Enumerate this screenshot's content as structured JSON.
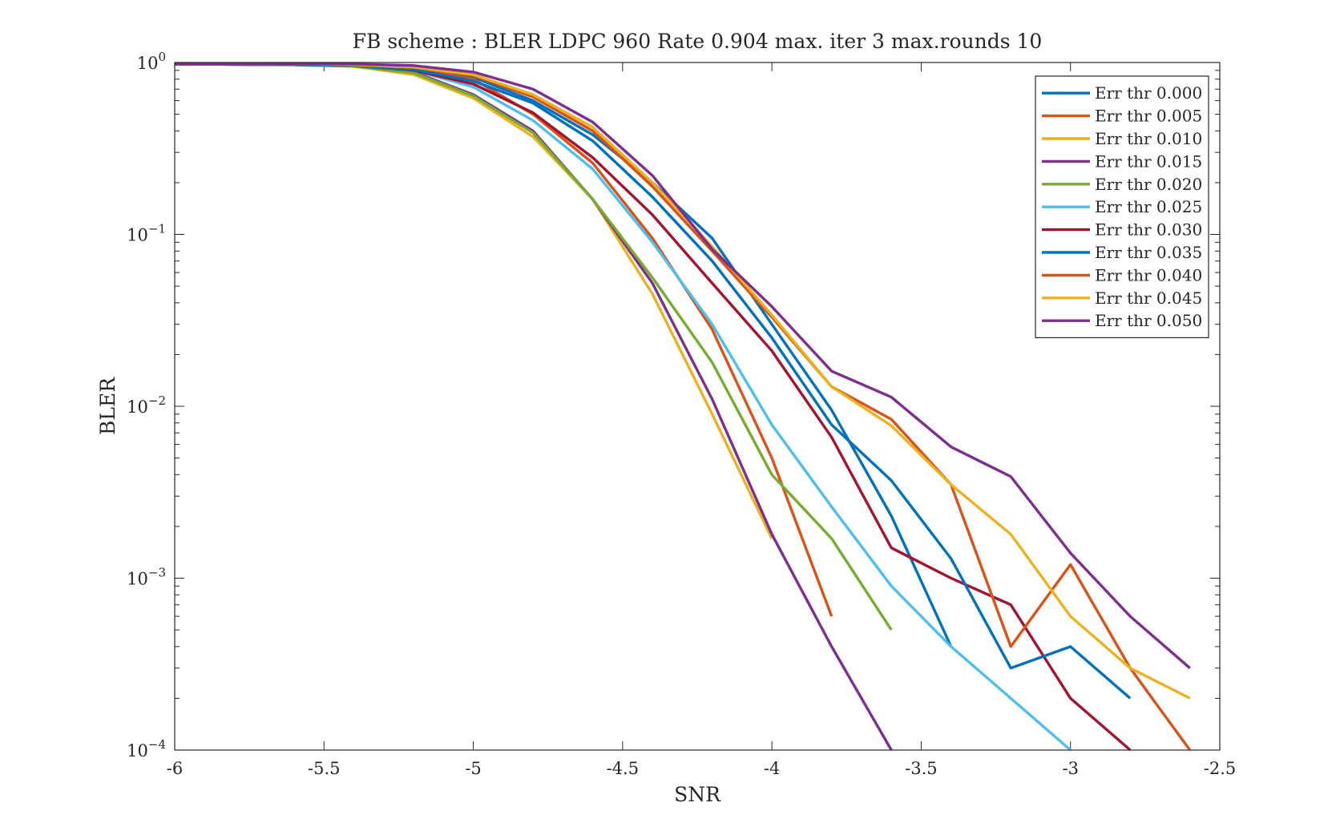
{
  "chart_data": {
    "type": "line",
    "title": "FB scheme : BLER LDPC 960 Rate 0.904 max. iter 3 max.rounds 10",
    "xlabel": "SNR",
    "ylabel": "BLER",
    "xlim": [
      -6,
      -2.5
    ],
    "ylim": [
      0.0001,
      1
    ],
    "yscale": "log",
    "grid": false,
    "legend_position": "top-right",
    "x_ticks": [
      {
        "value": -6,
        "label": "-6"
      },
      {
        "value": -5.5,
        "label": "-5.5"
      },
      {
        "value": -5,
        "label": "-5"
      },
      {
        "value": -4.5,
        "label": "-4.5"
      },
      {
        "value": -4,
        "label": "-4"
      },
      {
        "value": -3.5,
        "label": "-3.5"
      },
      {
        "value": -3,
        "label": "-3"
      },
      {
        "value": -2.5,
        "label": "-2.5"
      }
    ],
    "y_ticks": [
      {
        "value": 1,
        "base": "10",
        "exp": "0"
      },
      {
        "value": 0.1,
        "base": "10",
        "exp": "−1"
      },
      {
        "value": 0.01,
        "base": "10",
        "exp": "−2"
      },
      {
        "value": 0.001,
        "base": "10",
        "exp": "−3"
      },
      {
        "value": 0.0001,
        "base": "10",
        "exp": "−4"
      }
    ],
    "series": [
      {
        "name": "Err thr 0.000",
        "color": "#0072BD",
        "x": [
          -6,
          -5.6,
          -5.4,
          -5.2,
          -5,
          -4.8,
          -4.6,
          -4.4,
          -4.2,
          -4,
          -3.8,
          -3.6,
          -3.4
        ],
        "y": [
          0.98,
          0.98,
          0.97,
          0.94,
          0.82,
          0.6,
          0.38,
          0.2,
          0.095,
          0.03,
          0.0095,
          0.0023,
          0.0004
        ]
      },
      {
        "name": "Err thr 0.005",
        "color": "#D95319",
        "x": [
          -6,
          -5.6,
          -5.4,
          -5.2,
          -5,
          -4.8,
          -4.6,
          -4.4,
          -4.2,
          -4,
          -3.8
        ],
        "y": [
          0.98,
          0.97,
          0.96,
          0.92,
          0.8,
          0.5,
          0.26,
          0.095,
          0.028,
          0.005,
          0.0006
        ]
      },
      {
        "name": "Err thr 0.010",
        "color": "#EDB120",
        "x": [
          -6,
          -5.6,
          -5.4,
          -5.2,
          -5,
          -4.8,
          -4.6,
          -4.4,
          -4.2,
          -4
        ],
        "y": [
          0.98,
          0.97,
          0.95,
          0.85,
          0.62,
          0.37,
          0.16,
          0.045,
          0.009,
          0.0017
        ]
      },
      {
        "name": "Err thr 0.015",
        "color": "#7E2F8E",
        "x": [
          -6,
          -5.6,
          -5.4,
          -5.2,
          -5,
          -4.8,
          -4.6,
          -4.4,
          -4.2,
          -4,
          -3.8,
          -3.6
        ],
        "y": [
          0.98,
          0.97,
          0.96,
          0.88,
          0.65,
          0.4,
          0.16,
          0.052,
          0.011,
          0.0018,
          0.0004,
          0.0001
        ]
      },
      {
        "name": "Err thr 0.020",
        "color": "#77AC30",
        "x": [
          -6,
          -5.6,
          -5.4,
          -5.2,
          -5,
          -4.8,
          -4.6,
          -4.4,
          -4.2,
          -4,
          -3.8,
          -3.6
        ],
        "y": [
          0.98,
          0.97,
          0.95,
          0.87,
          0.64,
          0.39,
          0.16,
          0.056,
          0.018,
          0.004,
          0.0017,
          0.0005
        ]
      },
      {
        "name": "Err thr 0.025",
        "color": "#4DBEEE",
        "x": [
          -6,
          -5.6,
          -5.4,
          -5.2,
          -5,
          -4.8,
          -4.6,
          -4.4,
          -4.2,
          -4,
          -3.8,
          -3.6,
          -3.4,
          -3.2,
          -3
        ],
        "y": [
          0.98,
          0.97,
          0.96,
          0.9,
          0.72,
          0.46,
          0.24,
          0.09,
          0.03,
          0.0078,
          0.0026,
          0.0009,
          0.0004,
          0.0002,
          0.0001
        ]
      },
      {
        "name": "Err thr 0.030",
        "color": "#A2142F",
        "x": [
          -6,
          -5.6,
          -5.4,
          -5.2,
          -5,
          -4.8,
          -4.6,
          -4.4,
          -4.2,
          -4,
          -3.8,
          -3.6,
          -3.4,
          -3.2,
          -3,
          -2.8
        ],
        "y": [
          0.98,
          0.97,
          0.96,
          0.9,
          0.75,
          0.51,
          0.28,
          0.13,
          0.052,
          0.021,
          0.0066,
          0.0015,
          0.001,
          0.0007,
          0.0002,
          0.0001
        ]
      },
      {
        "name": "Err thr 0.035",
        "color": "#0072BD",
        "x": [
          -6,
          -5.6,
          -5.4,
          -5.2,
          -5,
          -4.8,
          -4.6,
          -4.4,
          -4.2,
          -4,
          -3.8,
          -3.6,
          -3.4,
          -3.2,
          -3,
          -2.8
        ],
        "y": [
          0.98,
          0.97,
          0.96,
          0.91,
          0.78,
          0.58,
          0.35,
          0.165,
          0.07,
          0.025,
          0.0078,
          0.0037,
          0.0013,
          0.0003,
          0.0004,
          0.0002
        ]
      },
      {
        "name": "Err thr 0.040",
        "color": "#D95319",
        "x": [
          -6,
          -5.6,
          -5.4,
          -5.2,
          -5,
          -4.8,
          -4.6,
          -4.4,
          -4.2,
          -4,
          -3.8,
          -3.6,
          -3.4,
          -3.2,
          -3,
          -2.8,
          -2.6
        ],
        "y": [
          0.98,
          0.98,
          0.97,
          0.94,
          0.84,
          0.63,
          0.4,
          0.19,
          0.08,
          0.033,
          0.013,
          0.0084,
          0.0035,
          0.0004,
          0.0012,
          0.0003,
          0.0001
        ]
      },
      {
        "name": "Err thr 0.045",
        "color": "#EDB120",
        "x": [
          -6,
          -5.6,
          -5.4,
          -5.2,
          -5,
          -4.8,
          -4.6,
          -4.4,
          -4.2,
          -4,
          -3.8,
          -3.6,
          -3.4,
          -3.2,
          -3,
          -2.8,
          -2.6
        ],
        "y": [
          0.98,
          0.98,
          0.97,
          0.94,
          0.85,
          0.65,
          0.42,
          0.2,
          0.085,
          0.034,
          0.013,
          0.0077,
          0.0035,
          0.0018,
          0.0006,
          0.0003,
          0.0002
        ]
      },
      {
        "name": "Err thr 0.050",
        "color": "#7E2F8E",
        "x": [
          -6,
          -5.6,
          -5.4,
          -5.2,
          -5,
          -4.8,
          -4.6,
          -4.4,
          -4.2,
          -4,
          -3.8,
          -3.6,
          -3.4,
          -3.2,
          -3,
          -2.8,
          -2.6
        ],
        "y": [
          0.98,
          0.98,
          0.98,
          0.96,
          0.88,
          0.7,
          0.45,
          0.22,
          0.082,
          0.038,
          0.016,
          0.0113,
          0.0058,
          0.0039,
          0.0014,
          0.0006,
          0.0003
        ]
      }
    ]
  }
}
